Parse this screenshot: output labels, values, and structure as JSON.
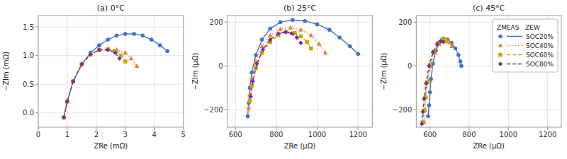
{
  "chart_data": [
    {
      "type": "line",
      "title": "(a) 0°C",
      "x_label": "ZRe (mΩ)",
      "y_label": "−ZIm (mΩ)",
      "xlim": [
        0,
        5
      ],
      "ylim": [
        -0.25,
        1.7
      ],
      "xticks": [
        0,
        1,
        2,
        3,
        4,
        5
      ],
      "yticks": [
        {
          "value": 0,
          "label": "0.0"
        },
        0.5,
        {
          "value": 1,
          "label": "1.0"
        },
        1.5
      ],
      "grid": true,
      "series": [
        {
          "name": "SOC20%",
          "color": "#4472c4",
          "marker": "circle",
          "line_style": "solid",
          "x": [
            0.88,
            1.0,
            1.2,
            1.5,
            1.8,
            2.1,
            2.4,
            2.7,
            3.0,
            3.3,
            3.6,
            3.9,
            4.2,
            4.45
          ],
          "values": [
            -0.08,
            0.2,
            0.55,
            0.85,
            1.05,
            1.18,
            1.28,
            1.35,
            1.38,
            1.38,
            1.35,
            1.28,
            1.18,
            1.08
          ]
        },
        {
          "name": "SOC40%",
          "color": "#ed7d31",
          "marker": "triangle",
          "line_style": "dotted",
          "x": [
            0.88,
            1.0,
            1.2,
            1.5,
            1.8,
            2.1,
            2.4,
            2.7,
            3.0,
            3.2,
            3.4
          ],
          "values": [
            -0.08,
            0.2,
            0.55,
            0.85,
            1.02,
            1.1,
            1.12,
            1.1,
            1.05,
            0.95,
            0.82
          ]
        },
        {
          "name": "SOC60%",
          "color": "#c8a800",
          "marker": "square",
          "line_style": "dashed",
          "x": [
            0.88,
            1.0,
            1.2,
            1.5,
            1.8,
            2.1,
            2.4,
            2.65,
            2.85,
            3.0
          ],
          "values": [
            -0.08,
            0.2,
            0.55,
            0.85,
            1.02,
            1.1,
            1.11,
            1.08,
            1.0,
            0.9
          ]
        },
        {
          "name": "SOC80%",
          "color": "#7030a0",
          "marker": "diamond",
          "line_style": "dashed",
          "x": [
            0.88,
            1.0,
            1.2,
            1.5,
            1.8,
            2.1,
            2.4,
            2.65,
            2.8
          ],
          "values": [
            -0.08,
            0.2,
            0.55,
            0.85,
            1.02,
            1.1,
            1.1,
            1.05,
            0.95
          ]
        }
      ]
    },
    {
      "type": "line",
      "title": "(b) 25°C",
      "x_label": "ZRe (μΩ)",
      "y_label": "−ZIm (μΩ)",
      "xlim": [
        560,
        1270
      ],
      "ylim": [
        -280,
        230
      ],
      "xticks": [
        600,
        800,
        1000,
        1200
      ],
      "yticks": [
        {
          "value": -200,
          "label": "−200"
        },
        0,
        200
      ],
      "grid": true,
      "series": [
        {
          "name": "SOC20%",
          "color": "#4472c4",
          "marker": "circle",
          "line_style": "solid",
          "x": [
            660,
            665,
            670,
            680,
            700,
            730,
            770,
            820,
            880,
            940,
            1000,
            1060,
            1110,
            1160,
            1200
          ],
          "values": [
            -230,
            -170,
            -100,
            -30,
            50,
            120,
            170,
            200,
            210,
            205,
            190,
            165,
            130,
            90,
            55
          ]
        },
        {
          "name": "SOC40%",
          "color": "#ed7d31",
          "marker": "triangle",
          "line_style": "dotted",
          "x": [
            665,
            670,
            680,
            700,
            730,
            770,
            820,
            870,
            920,
            970,
            1010,
            1040
          ],
          "values": [
            -190,
            -130,
            -60,
            20,
            90,
            140,
            168,
            175,
            165,
            140,
            100,
            60
          ]
        },
        {
          "name": "SOC60%",
          "color": "#c8a800",
          "marker": "square",
          "line_style": "dashed",
          "x": [
            670,
            680,
            700,
            730,
            770,
            810,
            850,
            890,
            920,
            950,
            970
          ],
          "values": [
            -160,
            -90,
            -10,
            60,
            110,
            140,
            155,
            150,
            135,
            110,
            80
          ]
        },
        {
          "name": "SOC80%",
          "color": "#7030a0",
          "marker": "diamond",
          "line_style": "dashed",
          "x": [
            675,
            685,
            705,
            735,
            770,
            810,
            845,
            875,
            900,
            920
          ],
          "values": [
            -140,
            -70,
            10,
            75,
            120,
            148,
            155,
            148,
            130,
            105
          ]
        }
      ]
    },
    {
      "type": "line",
      "title": "(c) 45°C",
      "x_label": "ZRe (μΩ)",
      "y_label": "−ZIm (μΩ)",
      "xlim": [
        530,
        1270
      ],
      "ylim": [
        -280,
        230
      ],
      "xticks": [
        600,
        800,
        1000,
        1200
      ],
      "yticks": [
        {
          "value": -200,
          "label": "−200"
        },
        0,
        200
      ],
      "grid": true,
      "legend": "upper right",
      "legend_title": "ZMEAS   ZEW",
      "series": [
        {
          "name": "SOC20%",
          "color": "#4472c4",
          "marker": "circle",
          "line_style": "solid",
          "x": [
            590,
            595,
            600,
            605,
            615,
            630,
            650,
            670,
            690,
            710,
            730,
            745,
            755,
            760
          ],
          "values": [
            -230,
            -180,
            -120,
            -60,
            10,
            70,
            110,
            125,
            120,
            105,
            80,
            50,
            20,
            0
          ]
        },
        {
          "name": "SOC40%",
          "color": "#ed7d31",
          "marker": "triangle",
          "line_style": "dotted",
          "x": [
            570,
            575,
            580,
            590,
            605,
            625,
            648,
            668,
            685,
            700,
            712
          ],
          "values": [
            -255,
            -200,
            -140,
            -70,
            0,
            60,
            100,
            118,
            118,
            108,
            90
          ]
        },
        {
          "name": "SOC60%",
          "color": "#c8a800",
          "marker": "square",
          "line_style": "dashed",
          "x": [
            563,
            568,
            575,
            585,
            600,
            620,
            642,
            660,
            675,
            688
          ],
          "values": [
            -260,
            -205,
            -145,
            -75,
            5,
            65,
            105,
            120,
            120,
            112
          ]
        },
        {
          "name": "SOC80%",
          "color": "#7030a0",
          "marker": "diamond",
          "line_style": "dashed",
          "x": [
            558,
            563,
            570,
            580,
            595,
            615,
            637,
            655,
            668
          ],
          "values": [
            -265,
            -210,
            -150,
            -80,
            0,
            62,
            100,
            112,
            110
          ]
        }
      ]
    }
  ]
}
